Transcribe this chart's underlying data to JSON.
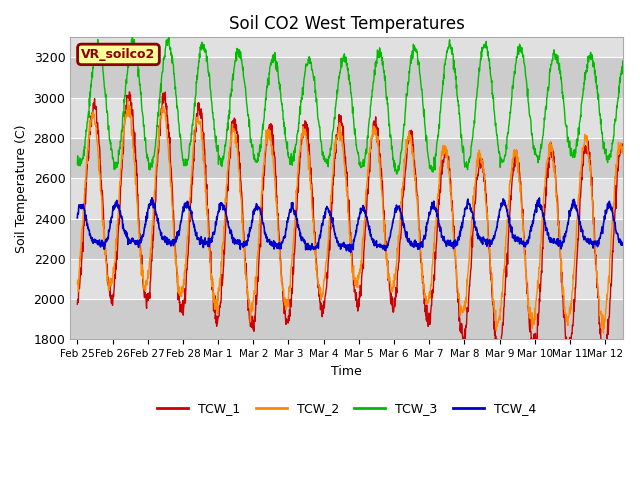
{
  "title": "Soil CO2 West Temperatures",
  "xlabel": "Time",
  "ylabel": "Soil Temperature (C)",
  "ylim": [
    1800,
    3300
  ],
  "label_box_text": "VR_soilco2",
  "label_box_color": "#FFFF99",
  "label_box_edge_color": "#8B0000",
  "series": [
    "TCW_1",
    "TCW_2",
    "TCW_3",
    "TCW_4"
  ],
  "colors": [
    "#CC0000",
    "#FF8800",
    "#00BB00",
    "#0000CC"
  ],
  "background_color": "#FFFFFF",
  "plot_bg_color": "#E0E0E0",
  "band_color_dark": "#CCCCCC",
  "band_color_light": "#E0E0E0",
  "tick_labels": [
    "Feb 25",
    "Feb 26",
    "Feb 27",
    "Feb 28",
    "Mar 1",
    "Mar 2",
    "Mar 3",
    "Mar 4",
    "Mar 5",
    "Mar 6",
    "Mar 7",
    "Mar 8",
    "Mar 9",
    "Mar 10",
    "Mar 11",
    "Mar 12"
  ],
  "tick_positions": [
    0,
    1,
    2,
    3,
    4,
    5,
    6,
    7,
    8,
    9,
    10,
    11,
    12,
    13,
    14,
    15
  ]
}
